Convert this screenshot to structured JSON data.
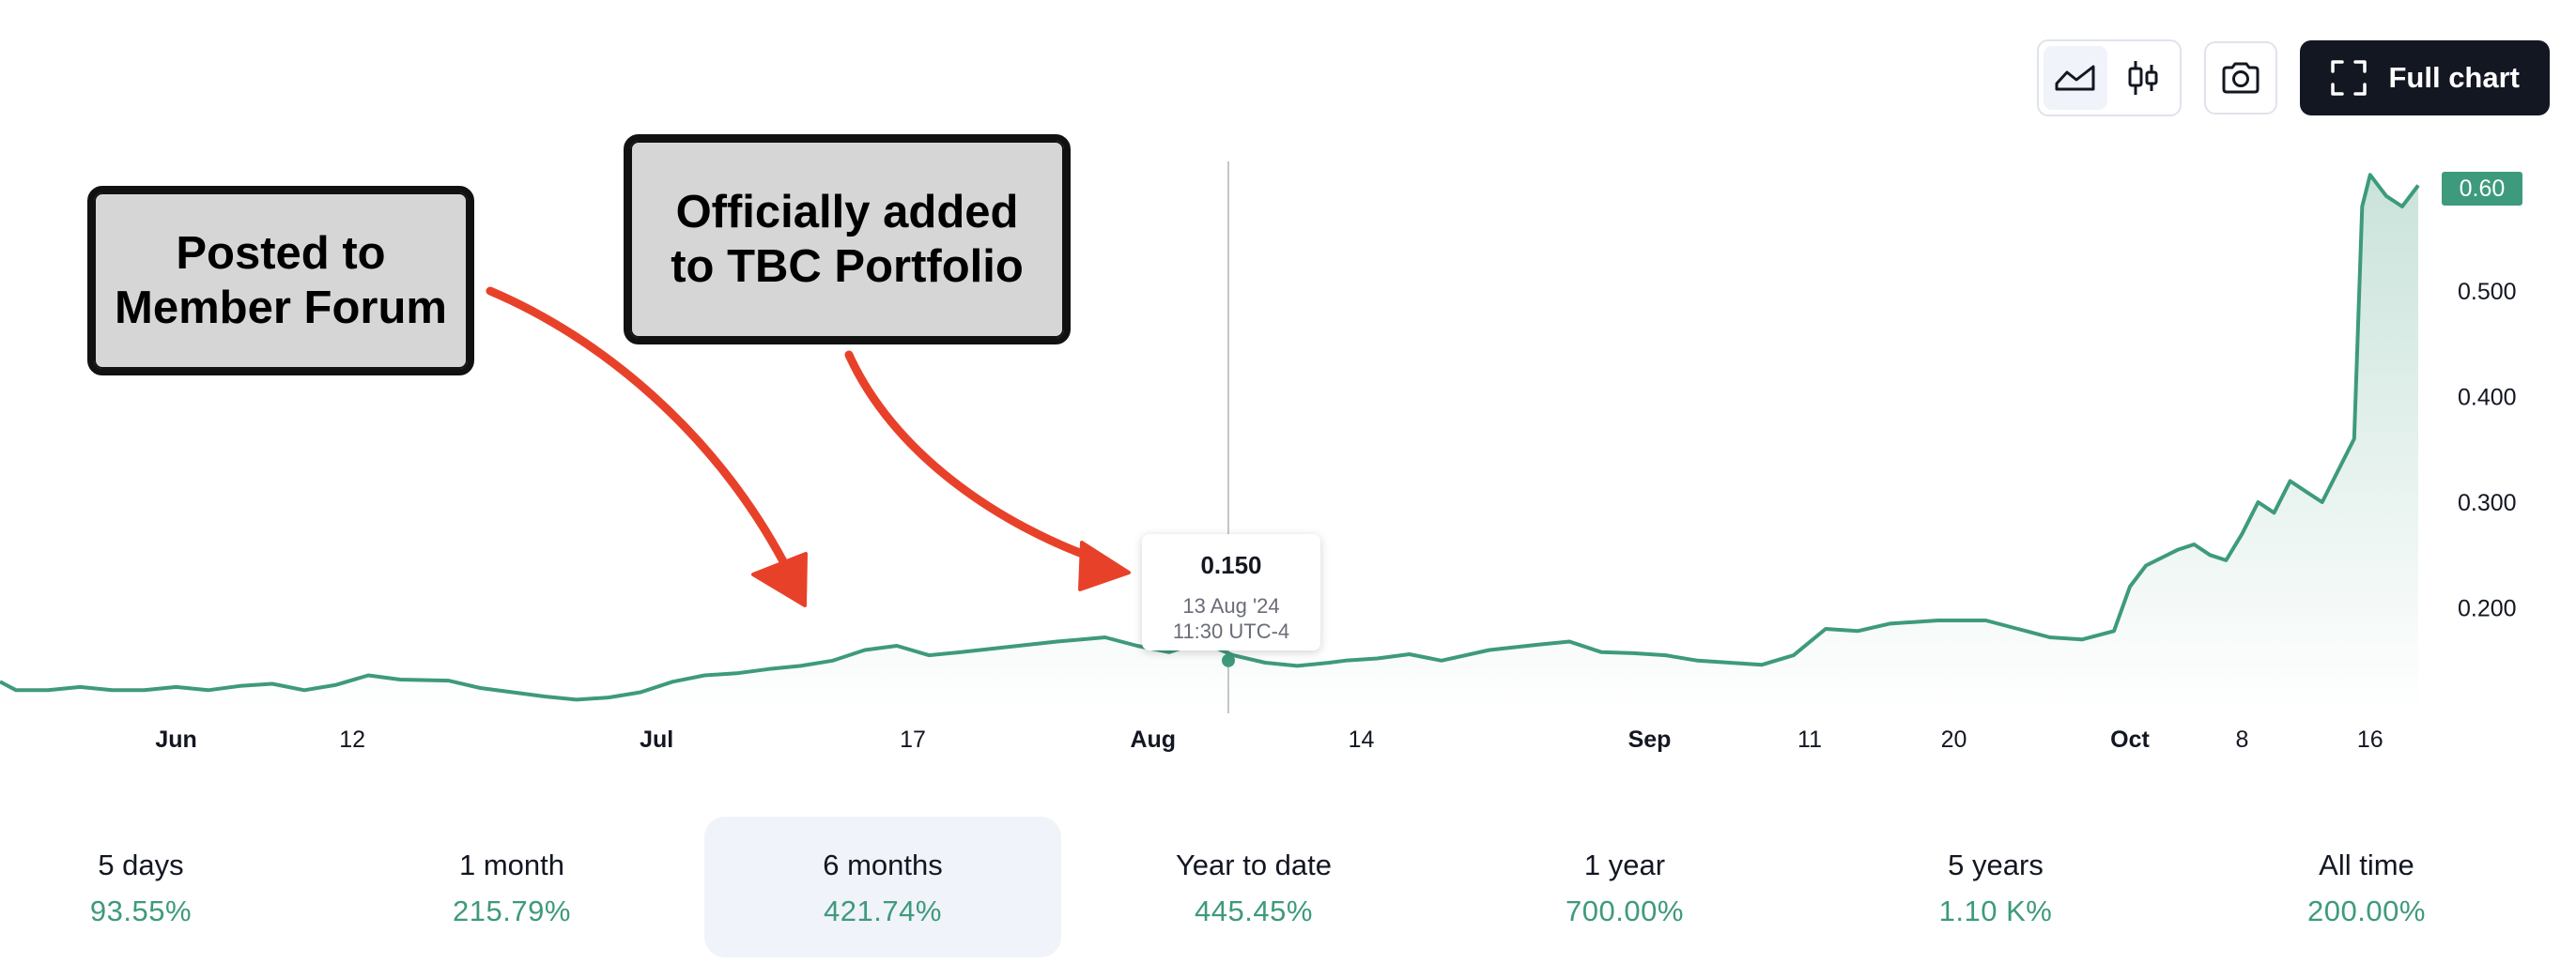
{
  "toolbar": {
    "full_chart_label": "Full chart",
    "area_icon": "area-chart-icon",
    "candle_icon": "candlestick-icon",
    "camera_icon": "camera-icon",
    "fullscreen_icon": "fullscreen-icon"
  },
  "annotations": {
    "note1": "Posted to\nMember Forum",
    "note2": "Officially added\nto TBC Portfolio"
  },
  "tooltip": {
    "value": "0.150",
    "date": "13 Aug '24",
    "time": "11:30 UTC-4"
  },
  "price_tag": "0.60",
  "colors": {
    "line": "#3e9a7c",
    "positive": "#3e9a7c",
    "arrow": "#e8412a",
    "button_dark": "#131722"
  },
  "chart_data": {
    "type": "area",
    "x_tick_labels": [
      "Jun",
      "12",
      "Jul",
      "17",
      "Aug",
      "14",
      "Sep",
      "11",
      "20",
      "Oct",
      "8",
      "16"
    ],
    "x_tick_bold": [
      true,
      false,
      true,
      false,
      true,
      false,
      true,
      false,
      false,
      true,
      false,
      false
    ],
    "y_tick_labels": [
      "0.200",
      "0.300",
      "0.400",
      "0.500"
    ],
    "y_ticks": [
      0.2,
      0.3,
      0.4,
      0.5
    ],
    "ylim": [
      0.1,
      0.625
    ],
    "current_value": 0.6,
    "crosshair_date": "13 Aug '24",
    "x_range": [
      "2024-05-21",
      "2024-10-19"
    ],
    "x_ticks": [
      "2024-06-01",
      "2024-06-12",
      "2024-07-01",
      "2024-07-17",
      "2024-08-01",
      "2024-08-14",
      "2024-09-01",
      "2024-09-11",
      "2024-09-20",
      "2024-10-01",
      "2024-10-08",
      "2024-10-16"
    ],
    "series": [
      {
        "points": [
          [
            "2024-05-21",
            0.13
          ],
          [
            "2024-05-22",
            0.122
          ],
          [
            "2024-05-24",
            0.122
          ],
          [
            "2024-05-26",
            0.125
          ],
          [
            "2024-05-28",
            0.122
          ],
          [
            "2024-05-30",
            0.122
          ],
          [
            "2024-06-01",
            0.125
          ],
          [
            "2024-06-03",
            0.122
          ],
          [
            "2024-06-05",
            0.126
          ],
          [
            "2024-06-07",
            0.128
          ],
          [
            "2024-06-09",
            0.122
          ],
          [
            "2024-06-11",
            0.127
          ],
          [
            "2024-06-13",
            0.136
          ],
          [
            "2024-06-15",
            0.132
          ],
          [
            "2024-06-18",
            0.131
          ],
          [
            "2024-06-20",
            0.124
          ],
          [
            "2024-06-22",
            0.12
          ],
          [
            "2024-06-24",
            0.116
          ],
          [
            "2024-06-26",
            0.113
          ],
          [
            "2024-06-28",
            0.115
          ],
          [
            "2024-06-30",
            0.12
          ],
          [
            "2024-07-02",
            0.13
          ],
          [
            "2024-07-04",
            0.136
          ],
          [
            "2024-07-06",
            0.138
          ],
          [
            "2024-07-08",
            0.142
          ],
          [
            "2024-07-10",
            0.145
          ],
          [
            "2024-07-12",
            0.15
          ],
          [
            "2024-07-14",
            0.16
          ],
          [
            "2024-07-16",
            0.164
          ],
          [
            "2024-07-18",
            0.155
          ],
          [
            "2024-07-20",
            0.158
          ],
          [
            "2024-07-23",
            0.163
          ],
          [
            "2024-07-26",
            0.168
          ],
          [
            "2024-07-29",
            0.172
          ],
          [
            "2024-07-31",
            0.164
          ],
          [
            "2024-08-02",
            0.158
          ],
          [
            "2024-08-04",
            0.168
          ],
          [
            "2024-08-06",
            0.155
          ],
          [
            "2024-08-08",
            0.148
          ],
          [
            "2024-08-10",
            0.145
          ],
          [
            "2024-08-12",
            0.148
          ],
          [
            "2024-08-13",
            0.15
          ],
          [
            "2024-08-15",
            0.152
          ],
          [
            "2024-08-17",
            0.156
          ],
          [
            "2024-08-19",
            0.15
          ],
          [
            "2024-08-22",
            0.16
          ],
          [
            "2024-08-25",
            0.165
          ],
          [
            "2024-08-27",
            0.168
          ],
          [
            "2024-08-29",
            0.158
          ],
          [
            "2024-08-31",
            0.157
          ],
          [
            "2024-09-02",
            0.155
          ],
          [
            "2024-09-04",
            0.15
          ],
          [
            "2024-09-06",
            0.148
          ],
          [
            "2024-09-08",
            0.146
          ],
          [
            "2024-09-10",
            0.155
          ],
          [
            "2024-09-12",
            0.18
          ],
          [
            "2024-09-14",
            0.178
          ],
          [
            "2024-09-16",
            0.185
          ],
          [
            "2024-09-19",
            0.188
          ],
          [
            "2024-09-22",
            0.188
          ],
          [
            "2024-09-24",
            0.18
          ],
          [
            "2024-09-26",
            0.172
          ],
          [
            "2024-09-28",
            0.17
          ],
          [
            "2024-09-30",
            0.178
          ],
          [
            "2024-10-01",
            0.22
          ],
          [
            "2024-10-02",
            0.24
          ],
          [
            "2024-10-04",
            0.255
          ],
          [
            "2024-10-05",
            0.26
          ],
          [
            "2024-10-06",
            0.25
          ],
          [
            "2024-10-07",
            0.245
          ],
          [
            "2024-10-08",
            0.27
          ],
          [
            "2024-10-09",
            0.3
          ],
          [
            "2024-10-10",
            0.29
          ],
          [
            "2024-10-11",
            0.32
          ],
          [
            "2024-10-12",
            0.31
          ],
          [
            "2024-10-13",
            0.3
          ],
          [
            "2024-10-14",
            0.33
          ],
          [
            "2024-10-15",
            0.36
          ],
          [
            "2024-10-15T12",
            0.58
          ],
          [
            "2024-10-16",
            0.61
          ],
          [
            "2024-10-17",
            0.59
          ],
          [
            "2024-10-18",
            0.58
          ],
          [
            "2024-10-19",
            0.6
          ]
        ]
      }
    ]
  },
  "periods": [
    {
      "label": "5 days",
      "change": "93.55%",
      "active": false
    },
    {
      "label": "1 month",
      "change": "215.79%",
      "active": false
    },
    {
      "label": "6 months",
      "change": "421.74%",
      "active": true
    },
    {
      "label": "Year to date",
      "change": "445.45%",
      "active": false
    },
    {
      "label": "1 year",
      "change": "700.00%",
      "active": false
    },
    {
      "label": "5 years",
      "change": "1.10 K%",
      "active": false
    },
    {
      "label": "All time",
      "change": "200.00%",
      "active": false
    }
  ]
}
